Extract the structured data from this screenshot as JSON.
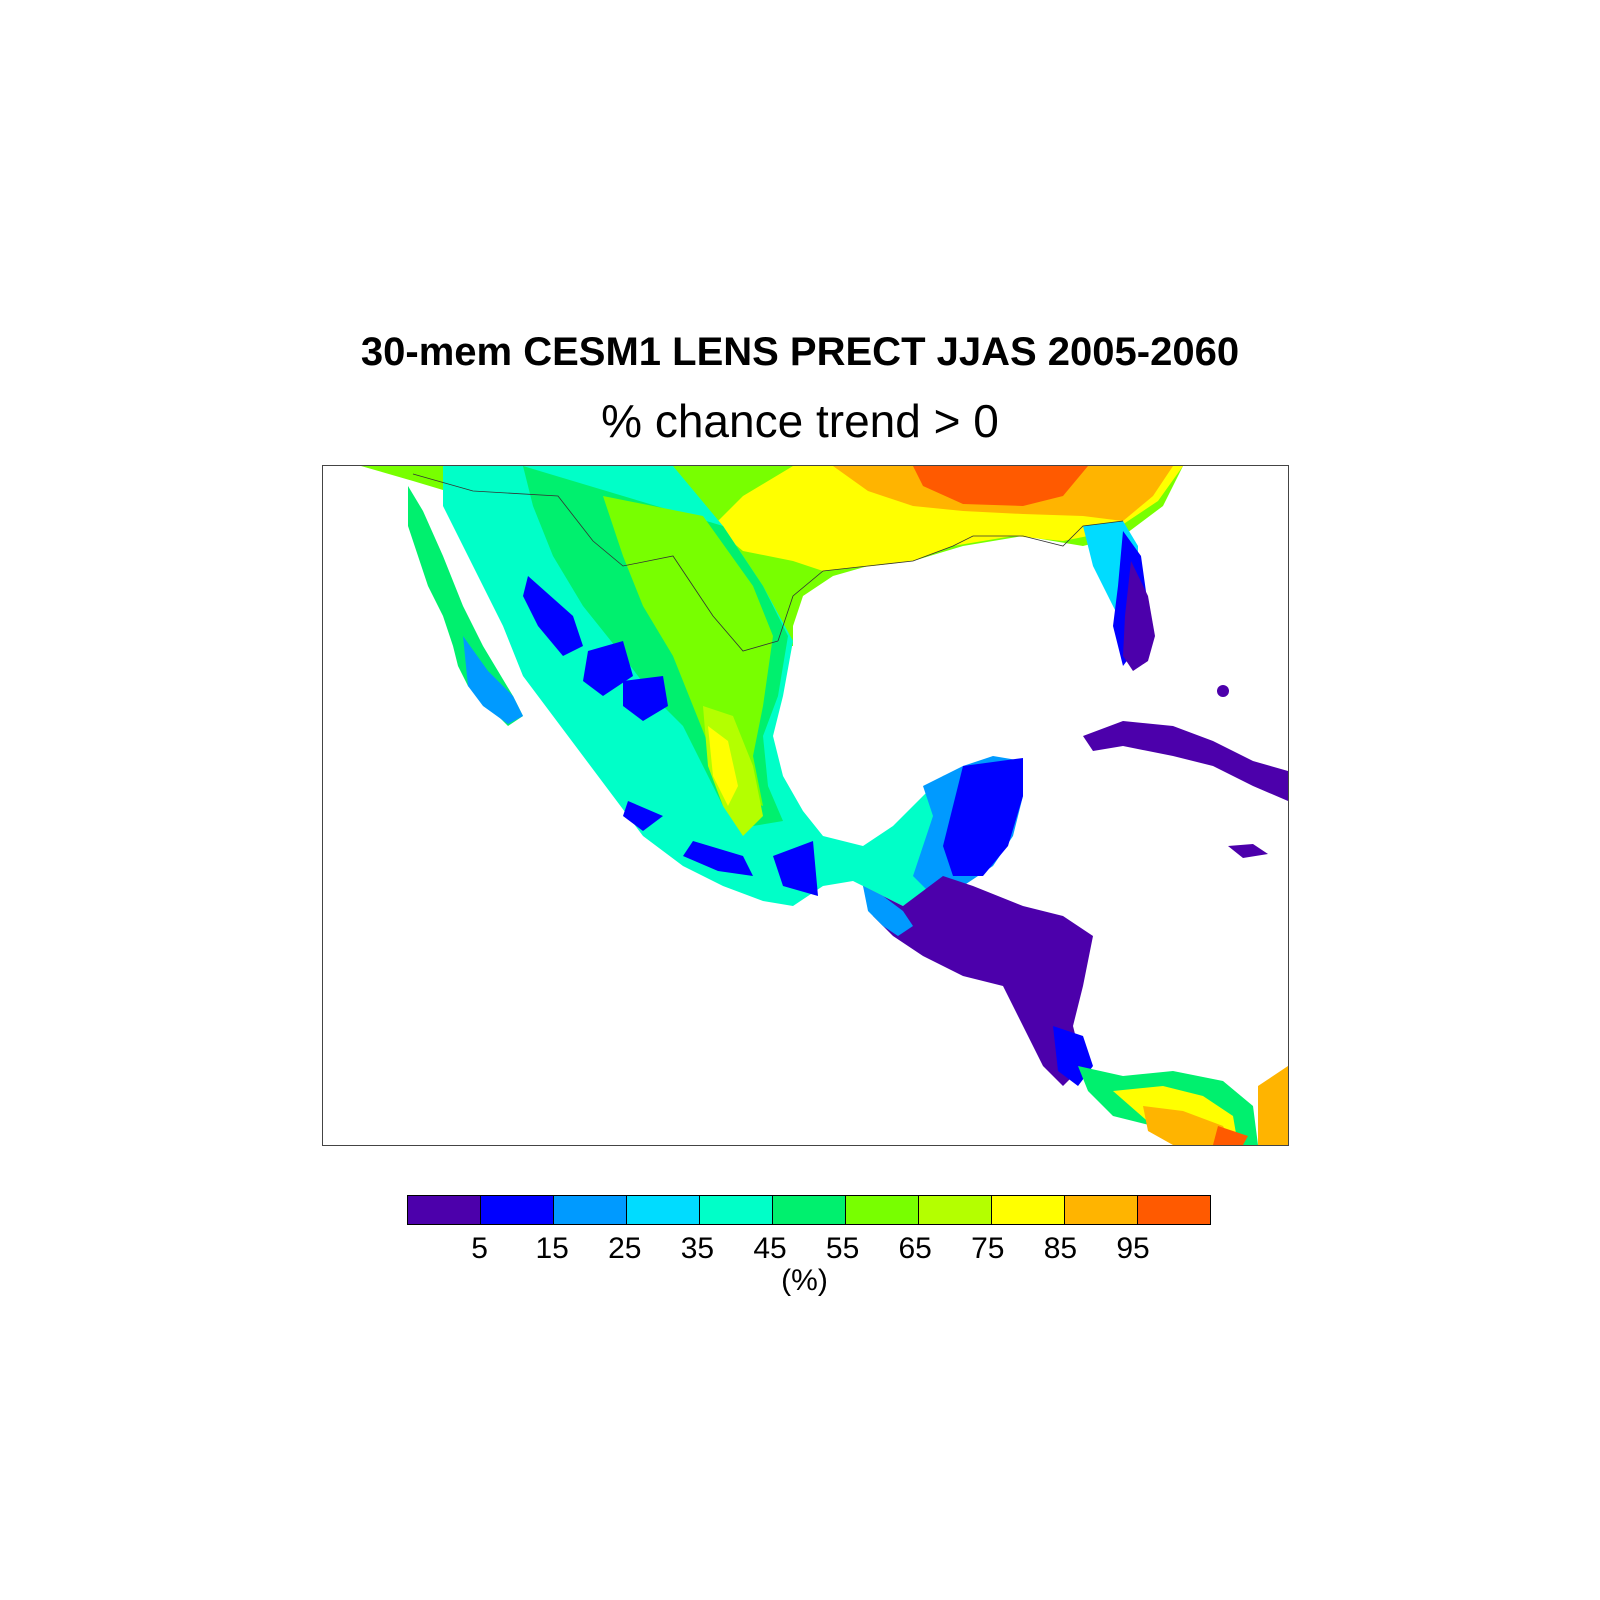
{
  "title": "30-mem CESM1 LENS PRECT JJAS 2005-2060",
  "subtitle": "% chance trend > 0",
  "colorbar": {
    "colors": [
      "#4c00ab",
      "#0000ff",
      "#009aff",
      "#00dcff",
      "#00ffc8",
      "#00f06e",
      "#78ff00",
      "#b4ff00",
      "#ffff00",
      "#ffb400",
      "#ff5a00"
    ],
    "labels": [
      "5",
      "15",
      "25",
      "35",
      "45",
      "55",
      "65",
      "75",
      "85",
      "95"
    ],
    "unit": "(%)"
  },
  "map": {
    "regions": [
      "United States (Gulf coast)",
      "Mexico",
      "Baja California",
      "Florida",
      "Cuba",
      "Yucatan",
      "Central America",
      "Panama"
    ],
    "ocean_color": "#ffffff"
  }
}
